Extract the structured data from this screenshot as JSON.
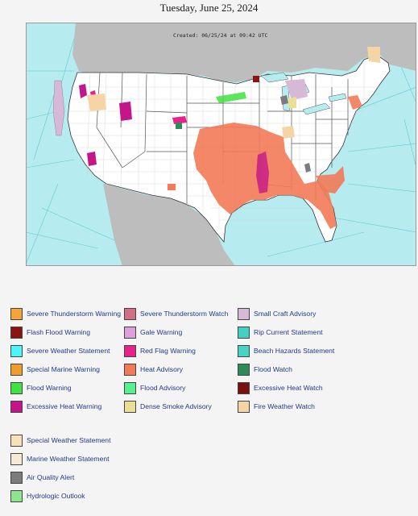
{
  "date": "Tuesday, June 25, 2024",
  "map": {
    "created_label": "Created: 06/25/24 at 09:42 UTC",
    "ocean_color": "#b6ecef",
    "land_color": "#ffffff",
    "outside_color": "#bdbdbd",
    "legend_side_note": ""
  },
  "legend": [
    {
      "label": "Severe Thunderstorm Warning",
      "color": "#f4a43a"
    },
    {
      "label": "Severe Thunderstorm Watch",
      "color": "#d46f83"
    },
    {
      "label": "Small Craft Advisory",
      "color": "#d6b9d6"
    },
    {
      "label": "Flash Flood Warning",
      "color": "#8b1414"
    },
    {
      "label": "Gale Warning",
      "color": "#dda0dd"
    },
    {
      "label": "Rip Current Statement",
      "color": "#43d1c3"
    },
    {
      "label": "Severe Weather Statement",
      "color": "#4ef5f7"
    },
    {
      "label": "Red Flag Warning",
      "color": "#e8228b"
    },
    {
      "label": "Beach Hazards Statement",
      "color": "#47d3c5"
    },
    {
      "label": "Special Marine Warning",
      "color": "#ef9e2c"
    },
    {
      "label": "Heat Advisory",
      "color": "#f27a56"
    },
    {
      "label": "Flood Watch",
      "color": "#2e8b57"
    },
    {
      "label": "Flood Warning",
      "color": "#3fe23f"
    },
    {
      "label": "Flood Advisory",
      "color": "#55f08f"
    },
    {
      "label": "Excessive Heat Watch",
      "color": "#7a1010"
    },
    {
      "label": "Excessive Heat Warning",
      "color": "#c4168a"
    },
    {
      "label": "Dense Smoke Advisory",
      "color": "#e9e096"
    },
    {
      "label": "Fire Weather Watch",
      "color": "#f5d5a6"
    },
    {
      "label": "Special Weather Statement",
      "color": "#f6e1b8"
    },
    {
      "label": "Marine Weather Statement",
      "color": "#f6ead6"
    },
    {
      "label": "Air Quality Alert",
      "color": "#7c7c7c"
    },
    {
      "label": "Hydrologic Outlook",
      "color": "#8fe58f"
    }
  ]
}
